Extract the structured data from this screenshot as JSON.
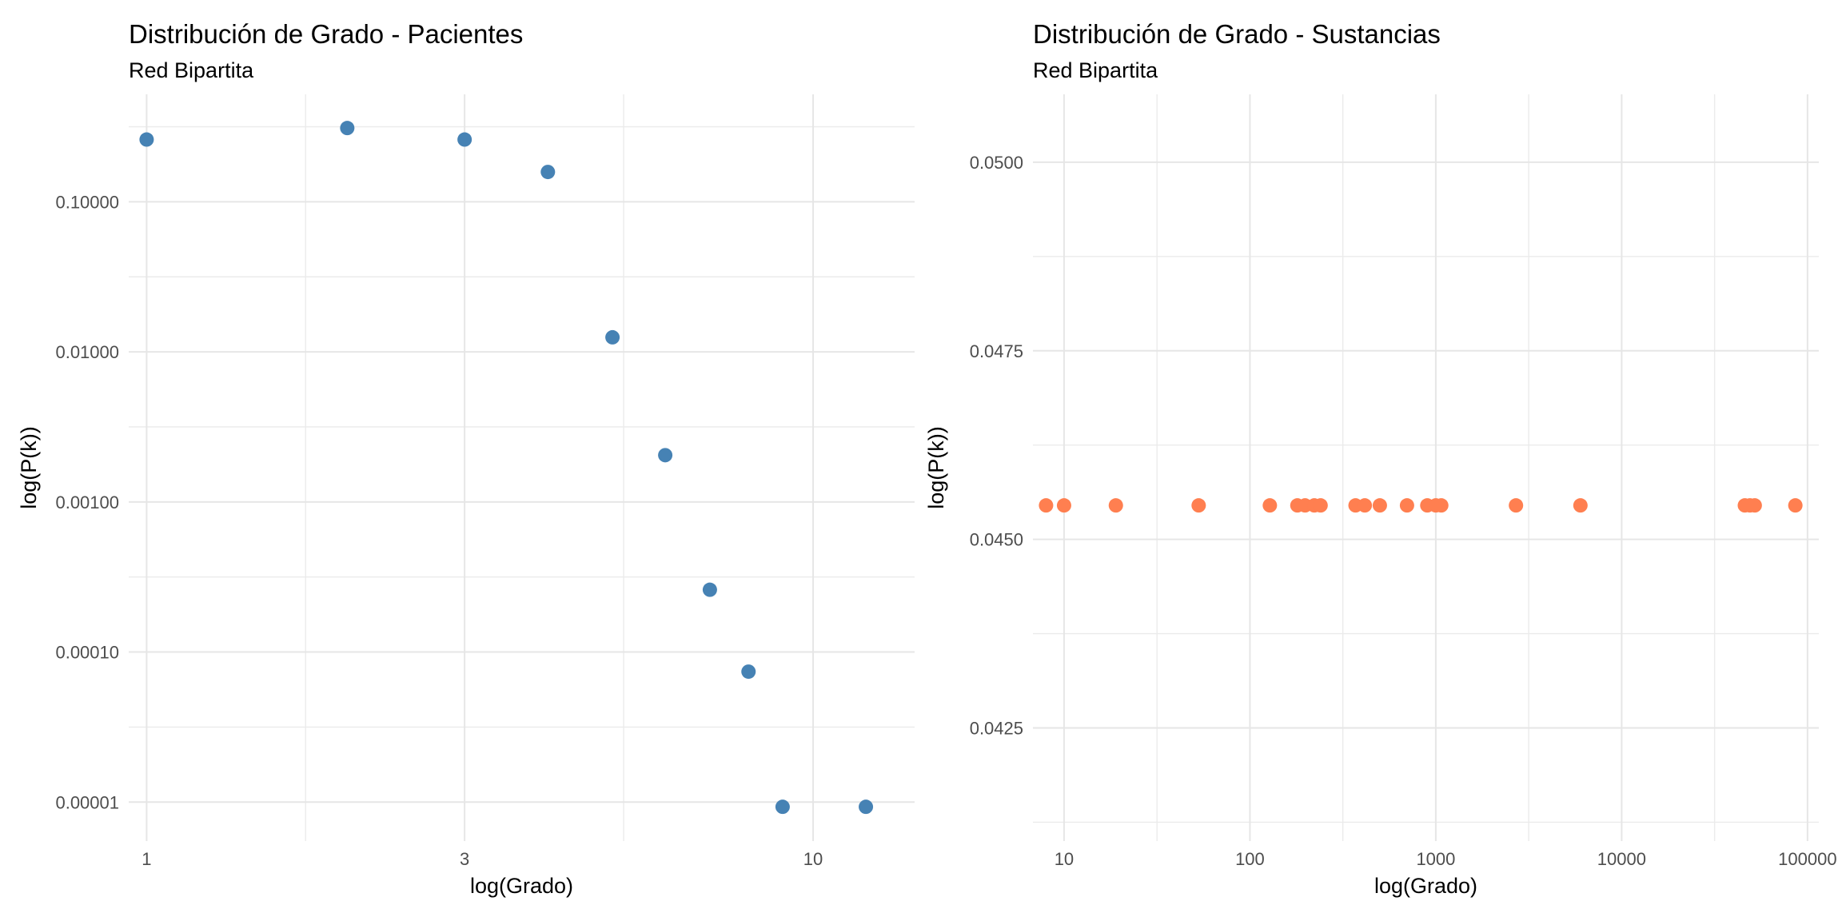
{
  "chart_data": [
    {
      "type": "scatter",
      "title": "Distribución de Grado - Pacientes",
      "subtitle": "Red Bipartita",
      "xlabel": "log(Grado)",
      "ylabel": "log(P(k))",
      "x_scale": "log10",
      "y_scale": "log10",
      "xlim": [
        0.94,
        14.2
      ],
      "ylim": [
        5.5e-06,
        0.52
      ],
      "x_ticks": [
        1,
        3,
        10
      ],
      "x_tick_labels": [
        "1",
        "3",
        "10"
      ],
      "y_ticks": [
        1e-05,
        0.0001,
        0.001,
        0.01,
        0.1
      ],
      "y_tick_labels": [
        "0.00001",
        "0.00010",
        "0.00100",
        "0.01000",
        "0.10000"
      ],
      "grid": true,
      "legend": "none",
      "color": "#4682B4",
      "points": [
        {
          "x": 1,
          "y": 0.26
        },
        {
          "x": 2,
          "y": 0.31
        },
        {
          "x": 3,
          "y": 0.26
        },
        {
          "x": 4,
          "y": 0.158
        },
        {
          "x": 5,
          "y": 0.0125
        },
        {
          "x": 6,
          "y": 0.00205
        },
        {
          "x": 7,
          "y": 0.00026
        },
        {
          "x": 8,
          "y": 7.4e-05
        },
        {
          "x": 9,
          "y": 9.3e-06
        },
        {
          "x": 12,
          "y": 9.3e-06
        }
      ]
    },
    {
      "type": "scatter",
      "title": "Distribución de Grado - Sustancias",
      "subtitle": "Red Bipartita",
      "xlabel": "log(Grado)",
      "ylabel": "log(P(k))",
      "x_scale": "log10",
      "y_scale": "linear",
      "xlim": [
        6.8,
        115000
      ],
      "ylim": [
        0.041,
        0.0509
      ],
      "x_ticks": [
        10,
        100,
        1000,
        10000,
        100000
      ],
      "x_tick_labels": [
        "10",
        "100",
        "1000",
        "10000",
        "100000"
      ],
      "y_ticks": [
        0.0425,
        0.045,
        0.0475,
        0.05
      ],
      "y_tick_labels": [
        "0.0425",
        "0.0450",
        "0.0475",
        "0.0500"
      ],
      "grid": true,
      "legend": "none",
      "color": "#FF7F50",
      "points": [
        {
          "x": 8,
          "y": 0.04545
        },
        {
          "x": 10,
          "y": 0.04545
        },
        {
          "x": 19,
          "y": 0.04545
        },
        {
          "x": 53,
          "y": 0.04545
        },
        {
          "x": 128,
          "y": 0.04545
        },
        {
          "x": 180,
          "y": 0.04545
        },
        {
          "x": 198,
          "y": 0.04545
        },
        {
          "x": 222,
          "y": 0.04545
        },
        {
          "x": 240,
          "y": 0.04545
        },
        {
          "x": 370,
          "y": 0.04545
        },
        {
          "x": 415,
          "y": 0.04545
        },
        {
          "x": 500,
          "y": 0.04545
        },
        {
          "x": 700,
          "y": 0.04545
        },
        {
          "x": 900,
          "y": 0.04545
        },
        {
          "x": 1000,
          "y": 0.04545
        },
        {
          "x": 1070,
          "y": 0.04545
        },
        {
          "x": 2700,
          "y": 0.04545
        },
        {
          "x": 6000,
          "y": 0.04545
        },
        {
          "x": 46000,
          "y": 0.04545
        },
        {
          "x": 49000,
          "y": 0.04545
        },
        {
          "x": 52000,
          "y": 0.04545
        },
        {
          "x": 86000,
          "y": 0.04545
        }
      ]
    }
  ]
}
